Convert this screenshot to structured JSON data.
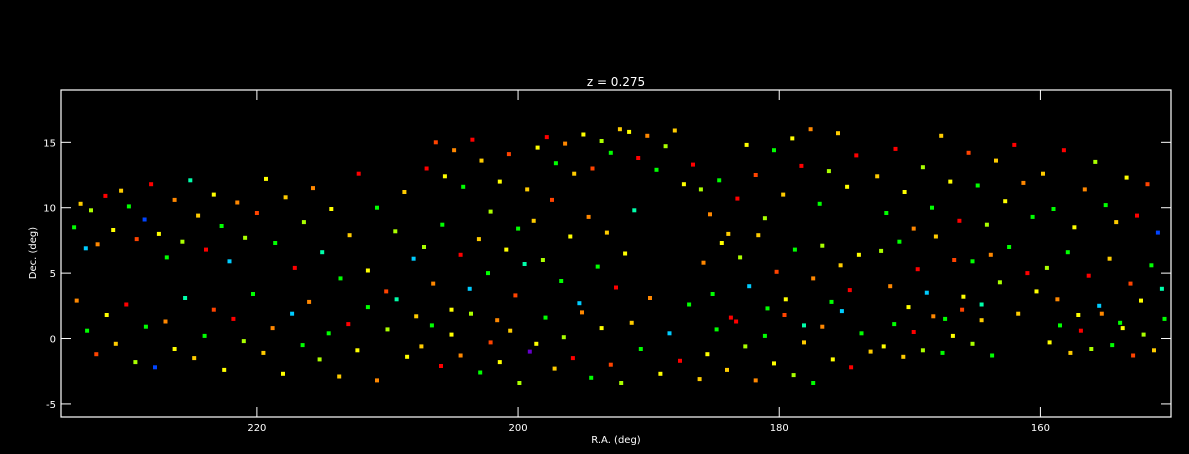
{
  "chart_data": {
    "type": "scatter",
    "title": "z = 0.275",
    "xlabel": "R.A. (deg)",
    "ylabel": "Dec. (deg)",
    "xlim": [
      235,
      150
    ],
    "ylim": [
      -6,
      19
    ],
    "xticks": [
      220,
      200,
      180,
      160
    ],
    "yticks": [
      -5,
      0,
      5,
      10,
      15
    ],
    "grid": false,
    "background": "#000000",
    "axis_color": "#ffffff",
    "point_colors": [
      "#ff0000",
      "#ff4400",
      "#ff8800",
      "#ffcc00",
      "#ffff00",
      "#aaff00",
      "#00ff00",
      "#00ffaa",
      "#00ccff",
      "#0044ff",
      "#6600cc"
    ],
    "points": [
      [
        234.0,
        8.5,
        6
      ],
      [
        233.5,
        10.3,
        3
      ],
      [
        233.1,
        6.9,
        8
      ],
      [
        232.7,
        9.8,
        5
      ],
      [
        232.2,
        7.2,
        2
      ],
      [
        231.6,
        10.9,
        0
      ],
      [
        231.0,
        8.3,
        4
      ],
      [
        230.4,
        11.3,
        3
      ],
      [
        229.8,
        10.1,
        6
      ],
      [
        229.2,
        7.6,
        1
      ],
      [
        228.6,
        9.1,
        9
      ],
      [
        228.1,
        11.8,
        0
      ],
      [
        227.5,
        8.0,
        4
      ],
      [
        226.9,
        6.2,
        6
      ],
      [
        226.3,
        10.6,
        2
      ],
      [
        225.7,
        7.4,
        5
      ],
      [
        225.1,
        12.1,
        7
      ],
      [
        224.5,
        9.4,
        3
      ],
      [
        223.9,
        6.8,
        0
      ],
      [
        223.3,
        11.0,
        4
      ],
      [
        222.7,
        8.6,
        6
      ],
      [
        222.1,
        5.9,
        8
      ],
      [
        221.5,
        10.4,
        2
      ],
      [
        220.9,
        7.7,
        5
      ],
      [
        233.8,
        2.9,
        2
      ],
      [
        233.0,
        0.6,
        6
      ],
      [
        232.3,
        -1.2,
        1
      ],
      [
        231.5,
        1.8,
        4
      ],
      [
        230.8,
        -0.4,
        3
      ],
      [
        230.0,
        2.6,
        0
      ],
      [
        229.3,
        -1.8,
        5
      ],
      [
        228.5,
        0.9,
        6
      ],
      [
        227.8,
        -2.2,
        9
      ],
      [
        227.0,
        1.3,
        2
      ],
      [
        226.3,
        -0.8,
        4
      ],
      [
        225.5,
        3.1,
        7
      ],
      [
        224.8,
        -1.5,
        3
      ],
      [
        224.0,
        0.2,
        6
      ],
      [
        223.3,
        2.2,
        1
      ],
      [
        222.5,
        -2.4,
        4
      ],
      [
        221.8,
        1.5,
        0
      ],
      [
        221.0,
        -0.2,
        5
      ],
      [
        220.3,
        3.4,
        6
      ],
      [
        219.5,
        -1.1,
        3
      ],
      [
        218.8,
        0.8,
        2
      ],
      [
        218.0,
        -2.7,
        4
      ],
      [
        217.3,
        1.9,
        8
      ],
      [
        216.5,
        -0.5,
        6
      ],
      [
        220.0,
        9.6,
        1
      ],
      [
        219.3,
        12.2,
        4
      ],
      [
        218.6,
        7.3,
        6
      ],
      [
        217.8,
        10.8,
        3
      ],
      [
        217.1,
        5.4,
        0
      ],
      [
        216.4,
        8.9,
        5
      ],
      [
        215.7,
        11.5,
        2
      ],
      [
        215.0,
        6.6,
        7
      ],
      [
        214.3,
        9.9,
        4
      ],
      [
        213.6,
        4.6,
        6
      ],
      [
        212.9,
        7.9,
        3
      ],
      [
        212.2,
        12.6,
        0
      ],
      [
        211.5,
        5.2,
        4
      ],
      [
        210.8,
        10.0,
        6
      ],
      [
        210.1,
        3.6,
        1
      ],
      [
        209.4,
        8.2,
        5
      ],
      [
        208.7,
        11.2,
        3
      ],
      [
        208.0,
        6.1,
        8
      ],
      [
        216.0,
        2.8,
        2
      ],
      [
        215.2,
        -1.6,
        5
      ],
      [
        214.5,
        0.4,
        6
      ],
      [
        213.7,
        -2.9,
        3
      ],
      [
        213.0,
        1.1,
        0
      ],
      [
        212.3,
        -0.9,
        4
      ],
      [
        211.5,
        2.4,
        6
      ],
      [
        210.8,
        -3.2,
        2
      ],
      [
        210.0,
        0.7,
        5
      ],
      [
        209.3,
        3.0,
        7
      ],
      [
        208.5,
        -1.4,
        4
      ],
      [
        207.8,
        1.7,
        3
      ],
      [
        207.0,
        13.0,
        0
      ],
      [
        206.3,
        15.0,
        1
      ],
      [
        205.6,
        12.4,
        4
      ],
      [
        204.9,
        14.4,
        2
      ],
      [
        204.2,
        11.6,
        6
      ],
      [
        203.5,
        15.2,
        0
      ],
      [
        202.8,
        13.6,
        3
      ],
      [
        202.1,
        9.7,
        5
      ],
      [
        201.4,
        12.0,
        4
      ],
      [
        200.7,
        14.1,
        1
      ],
      [
        200.0,
        8.4,
        6
      ],
      [
        199.3,
        11.4,
        3
      ],
      [
        207.2,
        7.0,
        5
      ],
      [
        206.5,
        4.2,
        2
      ],
      [
        205.8,
        8.7,
        6
      ],
      [
        205.1,
        2.2,
        4
      ],
      [
        204.4,
        6.4,
        0
      ],
      [
        203.7,
        3.8,
        8
      ],
      [
        203.0,
        7.6,
        3
      ],
      [
        202.3,
        5.0,
        6
      ],
      [
        201.6,
        1.4,
        2
      ],
      [
        200.9,
        6.8,
        4
      ],
      [
        200.2,
        3.3,
        1
      ],
      [
        199.5,
        5.7,
        7
      ],
      [
        207.4,
        -0.6,
        3
      ],
      [
        206.6,
        1.0,
        6
      ],
      [
        205.9,
        -2.1,
        0
      ],
      [
        205.1,
        0.3,
        4
      ],
      [
        204.4,
        -1.3,
        2
      ],
      [
        203.6,
        1.9,
        5
      ],
      [
        202.9,
        -2.6,
        6
      ],
      [
        202.1,
        -0.3,
        1
      ],
      [
        201.4,
        -1.8,
        4
      ],
      [
        200.6,
        0.6,
        3
      ],
      [
        199.9,
        -3.4,
        5
      ],
      [
        199.1,
        -1.0,
        10
      ],
      [
        198.5,
        14.6,
        4
      ],
      [
        197.8,
        15.4,
        0
      ],
      [
        197.1,
        13.4,
        6
      ],
      [
        196.4,
        14.9,
        2
      ],
      [
        195.7,
        12.6,
        3
      ],
      [
        195.0,
        15.6,
        4
      ],
      [
        194.3,
        13.0,
        1
      ],
      [
        193.6,
        15.1,
        5
      ],
      [
        192.9,
        14.2,
        6
      ],
      [
        192.2,
        16.0,
        3
      ],
      [
        191.5,
        15.8,
        4
      ],
      [
        190.8,
        13.8,
        0
      ],
      [
        190.1,
        15.5,
        2
      ],
      [
        189.4,
        12.9,
        6
      ],
      [
        188.7,
        14.7,
        5
      ],
      [
        188.0,
        15.9,
        3
      ],
      [
        187.3,
        11.8,
        4
      ],
      [
        186.6,
        13.3,
        0
      ],
      [
        198.8,
        9.0,
        3
      ],
      [
        198.1,
        6.0,
        5
      ],
      [
        197.4,
        10.6,
        1
      ],
      [
        196.7,
        4.4,
        6
      ],
      [
        196.0,
        7.8,
        4
      ],
      [
        195.3,
        2.7,
        8
      ],
      [
        194.6,
        9.3,
        2
      ],
      [
        193.9,
        5.5,
        6
      ],
      [
        193.2,
        8.1,
        3
      ],
      [
        192.5,
        3.9,
        0
      ],
      [
        191.8,
        6.5,
        4
      ],
      [
        191.1,
        9.8,
        7
      ],
      [
        198.6,
        -0.4,
        4
      ],
      [
        197.9,
        1.6,
        6
      ],
      [
        197.2,
        -2.3,
        3
      ],
      [
        196.5,
        0.1,
        5
      ],
      [
        195.8,
        -1.5,
        0
      ],
      [
        195.1,
        2.0,
        2
      ],
      [
        194.4,
        -3.0,
        6
      ],
      [
        193.6,
        0.8,
        4
      ],
      [
        192.9,
        -2.0,
        1
      ],
      [
        192.1,
        -3.4,
        5
      ],
      [
        191.3,
        1.2,
        3
      ],
      [
        190.6,
        -0.8,
        6
      ],
      [
        189.9,
        3.1,
        2
      ],
      [
        189.1,
        -2.7,
        4
      ],
      [
        188.4,
        0.4,
        8
      ],
      [
        187.6,
        -1.7,
        0
      ],
      [
        186.9,
        2.6,
        6
      ],
      [
        186.1,
        -3.1,
        3
      ],
      [
        186.0,
        11.4,
        5
      ],
      [
        185.3,
        9.5,
        2
      ],
      [
        184.6,
        12.1,
        6
      ],
      [
        183.9,
        8.0,
        3
      ],
      [
        183.2,
        10.7,
        0
      ],
      [
        182.5,
        14.8,
        4
      ],
      [
        181.8,
        12.5,
        1
      ],
      [
        181.1,
        9.2,
        5
      ],
      [
        180.4,
        14.4,
        6
      ],
      [
        179.7,
        11.0,
        3
      ],
      [
        179.0,
        15.3,
        4
      ],
      [
        178.3,
        13.2,
        0
      ],
      [
        177.6,
        16.0,
        2
      ],
      [
        176.9,
        10.3,
        6
      ],
      [
        176.2,
        12.8,
        5
      ],
      [
        175.5,
        15.7,
        3
      ],
      [
        174.8,
        11.6,
        4
      ],
      [
        174.1,
        14.0,
        0
      ],
      [
        185.8,
        5.8,
        2
      ],
      [
        185.1,
        3.4,
        6
      ],
      [
        184.4,
        7.3,
        4
      ],
      [
        183.7,
        1.6,
        0
      ],
      [
        183.0,
        6.2,
        5
      ],
      [
        182.3,
        4.0,
        8
      ],
      [
        181.6,
        7.9,
        3
      ],
      [
        180.9,
        2.3,
        6
      ],
      [
        180.2,
        5.1,
        1
      ],
      [
        179.5,
        3.0,
        4
      ],
      [
        178.8,
        6.8,
        6
      ],
      [
        178.1,
        1.0,
        7
      ],
      [
        177.4,
        4.6,
        2
      ],
      [
        176.7,
        7.1,
        5
      ],
      [
        176.0,
        2.8,
        6
      ],
      [
        175.3,
        5.6,
        3
      ],
      [
        174.6,
        3.7,
        0
      ],
      [
        173.9,
        6.4,
        4
      ],
      [
        185.5,
        -1.2,
        4
      ],
      [
        184.8,
        0.7,
        6
      ],
      [
        184.0,
        -2.4,
        3
      ],
      [
        183.3,
        1.3,
        0
      ],
      [
        182.6,
        -0.6,
        5
      ],
      [
        181.8,
        -3.2,
        2
      ],
      [
        181.1,
        0.2,
        6
      ],
      [
        180.4,
        -1.9,
        4
      ],
      [
        179.6,
        1.8,
        1
      ],
      [
        178.9,
        -2.8,
        5
      ],
      [
        178.1,
        -0.3,
        3
      ],
      [
        177.4,
        -3.4,
        6
      ],
      [
        176.7,
        0.9,
        2
      ],
      [
        175.9,
        -1.6,
        4
      ],
      [
        175.2,
        2.1,
        8
      ],
      [
        174.5,
        -2.2,
        0
      ],
      [
        173.7,
        0.4,
        6
      ],
      [
        173.0,
        -1.0,
        3
      ],
      [
        172.5,
        12.4,
        3
      ],
      [
        171.8,
        9.6,
        6
      ],
      [
        171.1,
        14.5,
        0
      ],
      [
        170.4,
        11.2,
        4
      ],
      [
        169.7,
        8.4,
        2
      ],
      [
        169.0,
        13.1,
        5
      ],
      [
        168.3,
        10.0,
        6
      ],
      [
        167.6,
        15.5,
        3
      ],
      [
        166.9,
        12.0,
        4
      ],
      [
        166.2,
        9.0,
        0
      ],
      [
        165.5,
        14.2,
        1
      ],
      [
        164.8,
        11.7,
        6
      ],
      [
        164.1,
        8.7,
        5
      ],
      [
        163.4,
        13.6,
        3
      ],
      [
        162.7,
        10.5,
        4
      ],
      [
        162.0,
        14.8,
        0
      ],
      [
        161.3,
        11.9,
        2
      ],
      [
        160.6,
        9.3,
        6
      ],
      [
        172.2,
        6.7,
        5
      ],
      [
        171.5,
        4.0,
        2
      ],
      [
        170.8,
        7.4,
        6
      ],
      [
        170.1,
        2.4,
        4
      ],
      [
        169.4,
        5.3,
        0
      ],
      [
        168.7,
        3.5,
        8
      ],
      [
        168.0,
        7.8,
        3
      ],
      [
        167.3,
        1.5,
        6
      ],
      [
        166.6,
        6.0,
        1
      ],
      [
        165.9,
        3.2,
        4
      ],
      [
        165.2,
        5.9,
        6
      ],
      [
        164.5,
        2.6,
        7
      ],
      [
        163.8,
        6.4,
        2
      ],
      [
        163.1,
        4.3,
        5
      ],
      [
        162.4,
        7.0,
        6
      ],
      [
        161.7,
        1.9,
        3
      ],
      [
        161.0,
        5.0,
        0
      ],
      [
        160.3,
        3.6,
        4
      ],
      [
        172.0,
        -0.6,
        4
      ],
      [
        171.2,
        1.1,
        6
      ],
      [
        170.5,
        -1.4,
        3
      ],
      [
        169.7,
        0.5,
        0
      ],
      [
        169.0,
        -0.9,
        5
      ],
      [
        168.2,
        1.7,
        2
      ],
      [
        167.5,
        -1.1,
        6
      ],
      [
        166.7,
        0.2,
        4
      ],
      [
        166.0,
        2.2,
        1
      ],
      [
        165.2,
        -0.4,
        5
      ],
      [
        164.5,
        1.4,
        3
      ],
      [
        163.7,
        -1.3,
        6
      ],
      [
        159.8,
        12.6,
        3
      ],
      [
        159.0,
        9.9,
        6
      ],
      [
        158.2,
        14.4,
        0
      ],
      [
        157.4,
        8.5,
        4
      ],
      [
        156.6,
        11.4,
        2
      ],
      [
        155.8,
        13.5,
        5
      ],
      [
        155.0,
        10.2,
        6
      ],
      [
        154.2,
        8.9,
        3
      ],
      [
        153.4,
        12.3,
        4
      ],
      [
        152.6,
        9.4,
        0
      ],
      [
        151.8,
        11.8,
        1
      ],
      [
        151.0,
        8.1,
        9
      ],
      [
        159.5,
        5.4,
        5
      ],
      [
        158.7,
        3.0,
        2
      ],
      [
        157.9,
        6.6,
        6
      ],
      [
        157.1,
        1.8,
        4
      ],
      [
        156.3,
        4.8,
        0
      ],
      [
        155.5,
        2.5,
        8
      ],
      [
        154.7,
        6.1,
        3
      ],
      [
        153.9,
        1.2,
        6
      ],
      [
        153.1,
        4.2,
        1
      ],
      [
        152.3,
        2.9,
        4
      ],
      [
        151.5,
        5.6,
        6
      ],
      [
        150.7,
        3.8,
        7
      ],
      [
        159.3,
        -0.3,
        4
      ],
      [
        158.5,
        1.0,
        6
      ],
      [
        157.7,
        -1.1,
        3
      ],
      [
        156.9,
        0.6,
        0
      ],
      [
        156.1,
        -0.8,
        5
      ],
      [
        155.3,
        1.9,
        2
      ],
      [
        154.5,
        -0.5,
        6
      ],
      [
        153.7,
        0.8,
        4
      ],
      [
        152.9,
        -1.3,
        1
      ],
      [
        152.1,
        0.3,
        5
      ],
      [
        151.3,
        -0.9,
        3
      ],
      [
        150.5,
        1.5,
        6
      ]
    ]
  }
}
